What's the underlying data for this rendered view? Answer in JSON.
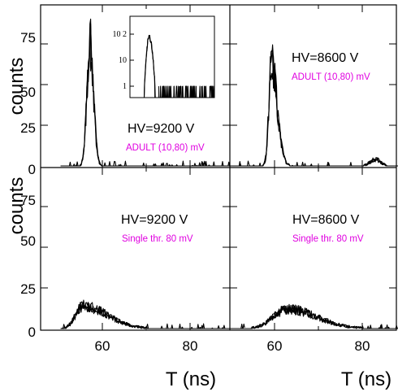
{
  "figure": {
    "ylabel_top": "counts",
    "ylabel_bottom": "counts",
    "xlabel_left": "T (ns)",
    "xlabel_right": "T (ns)",
    "x_ticks": [
      "60",
      "80"
    ],
    "y_ticks": [
      "0",
      "25",
      "50",
      "75"
    ],
    "inset_ticks": [
      "1",
      "10",
      "10 2"
    ]
  },
  "chart_data": [
    {
      "type": "line",
      "panel": "top-left",
      "hv_label": "HV=9200 V",
      "mode_label": "ADULT (10,80) mV",
      "xlim": [
        50,
        90
      ],
      "ylim": [
        0,
        90
      ],
      "series": [
        {
          "peaks": [
            {
              "x": 57.2,
              "y": 77,
              "sigma_left": 0.7,
              "sigma_right": 0.8
            }
          ]
        }
      ]
    },
    {
      "type": "line",
      "panel": "top-right",
      "hv_label": "HV=8600 V",
      "mode_label": "ADULT (10,80) mV",
      "xlim": [
        50,
        90
      ],
      "ylim": [
        0,
        90
      ],
      "series": [
        {
          "peaks": [
            {
              "x": 59.3,
              "y": 62,
              "sigma_left": 0.6,
              "sigma_right": 1.3
            },
            {
              "x": 83,
              "y": 4,
              "sigma_left": 1.2,
              "sigma_right": 1.2
            }
          ]
        }
      ]
    },
    {
      "type": "line",
      "panel": "bottom-left",
      "hv_label": "HV=9200 V",
      "mode_label": "Single thr. 80 mV",
      "xlim": [
        50,
        90
      ],
      "ylim": [
        0,
        90
      ],
      "series": [
        {
          "peaks": [
            {
              "x": 55.5,
              "y": 14,
              "sigma_left": 1.6,
              "sigma_right": 5.5
            }
          ]
        }
      ]
    },
    {
      "type": "line",
      "panel": "bottom-right",
      "hv_label": "HV=8600 V",
      "mode_label": "Single thr. 80 mV",
      "xlim": [
        50,
        90
      ],
      "ylim": [
        0,
        90
      ],
      "series": [
        {
          "peaks": [
            {
              "x": 63,
              "y": 12,
              "sigma_left": 3.2,
              "sigma_right": 6.5
            }
          ]
        }
      ]
    },
    {
      "type": "line",
      "panel": "top-left-inset",
      "yscale": "log",
      "ylim": [
        0.5,
        300
      ],
      "series": [
        {
          "peaks": [
            {
              "x": 57.2,
              "y": 77
            }
          ]
        }
      ]
    }
  ]
}
